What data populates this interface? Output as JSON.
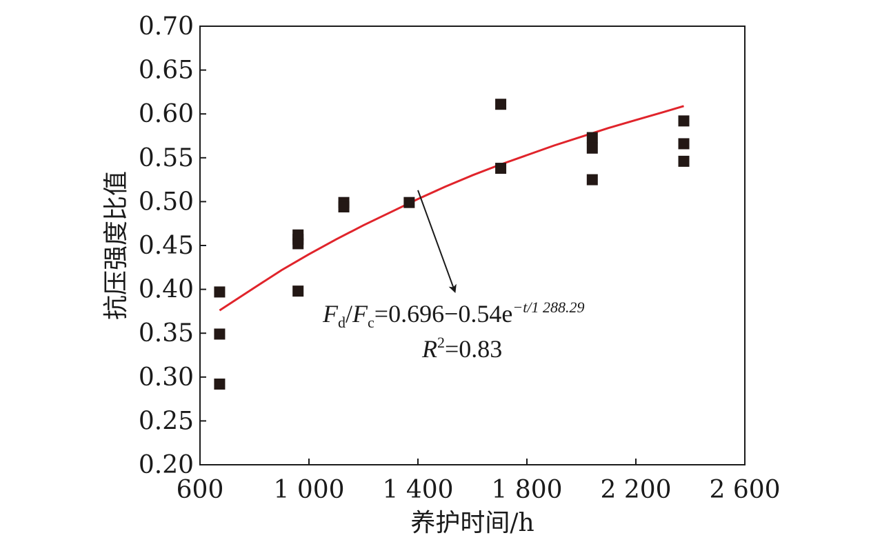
{
  "chart_data": {
    "type": "scatter",
    "xlabel": "养护时间/h",
    "ylabel": "抗压强度比值",
    "xlim": [
      600,
      2600
    ],
    "ylim": [
      0.2,
      0.7
    ],
    "x_ticks": [
      600,
      1000,
      1400,
      1800,
      2200,
      2600
    ],
    "x_tick_labels": [
      "600",
      "1 000",
      "1 400",
      "1 800",
      "2 200",
      "2 600"
    ],
    "y_ticks": [
      0.2,
      0.25,
      0.3,
      0.35,
      0.4,
      0.45,
      0.5,
      0.55,
      0.6,
      0.65,
      0.7
    ],
    "y_tick_labels": [
      "0.20",
      "0.25",
      "0.30",
      "0.35",
      "0.40",
      "0.45",
      "0.50",
      "0.55",
      "0.60",
      "0.65",
      "0.70"
    ],
    "grid": false,
    "series": [
      {
        "kind": "scatter",
        "marker": "square",
        "color": "#231815",
        "x": [
          672,
          672,
          672,
          960,
          960,
          960,
          960,
          1128,
          1128,
          1368,
          1704,
          1704,
          2040,
          2040,
          2040,
          2376,
          2376,
          2376
        ],
        "y": [
          0.397,
          0.349,
          0.292,
          0.462,
          0.457,
          0.452,
          0.398,
          0.499,
          0.494,
          0.499,
          0.611,
          0.538,
          0.573,
          0.561,
          0.525,
          0.592,
          0.566,
          0.546
        ]
      },
      {
        "kind": "fit-line",
        "color": "#e0242b",
        "x": [
          672,
          800,
          900,
          1000,
          1100,
          1200,
          1300,
          1400,
          1500,
          1600,
          1700,
          1800,
          1900,
          2000,
          2100,
          2200,
          2300,
          2376
        ],
        "y": [
          0.376,
          0.402,
          0.422,
          0.44,
          0.457,
          0.473,
          0.488,
          0.503,
          0.517,
          0.53,
          0.542,
          0.553,
          0.564,
          0.574,
          0.584,
          0.593,
          0.602,
          0.609
        ]
      }
    ],
    "annotation": {
      "arrow_from": [
        1400,
        0.513
      ],
      "arrow_to": [
        1535,
        0.398
      ],
      "F": "F",
      "sub_d": "d",
      "slash": "/",
      "sub_c": "c",
      "eq_main": "=0.696−0.54e",
      "eq_exp": "−t/1 288.29",
      "R": "R",
      "r_sup": "2",
      "r_value": "=0.83"
    }
  }
}
